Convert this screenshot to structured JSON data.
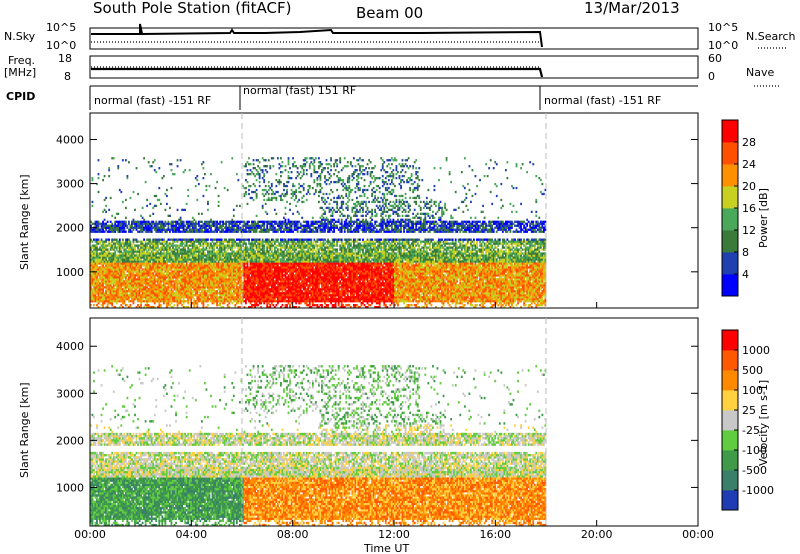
{
  "header": {
    "station": "South Pole Station (fitACF)",
    "beam": "Beam 00",
    "date": "13/Mar/2013"
  },
  "side_labels": {
    "nsky": "N.Sky",
    "freq_line1": "Freq.",
    "freq_line2": "[MHz]",
    "cpid": "CPID",
    "nsearch": "N.Search",
    "nave": "Nave"
  },
  "strip_ticks": {
    "nsky_top": "10^5",
    "nsky_bottom": "10^0",
    "freq_top": "18",
    "freq_bottom": "8",
    "nsearch_top": "10^5",
    "nsearch_bottom": "10^0",
    "nave_top": "60",
    "nave_bottom": "0"
  },
  "cpid_segments": [
    "normal (fast) -151 RF",
    "normal (fast) 151 RF",
    "normal (fast) -151 RF"
  ],
  "chart_data": [
    {
      "type": "heatmap",
      "quantity": "Power",
      "ylabel": "Slant Range [km]",
      "colorbar_label": "Power [dB]",
      "colorbar_ticks": [
        "4",
        "8",
        "12",
        "16",
        "20",
        "24",
        "28"
      ],
      "colorbar_colors": [
        "#0000ff",
        "#2040b0",
        "#3a7a3a",
        "#4aa85a",
        "#c8d020",
        "#ff9000",
        "#ff5000",
        "#ff0000"
      ],
      "y_ticks": [
        "1000",
        "2000",
        "3000",
        "4000"
      ],
      "ylim": [
        180,
        4600
      ],
      "xlim": [
        0,
        24
      ],
      "data_extent_hours": [
        0,
        18
      ],
      "x_ticks": [
        "00:00",
        "04:00",
        "08:00",
        "12:00",
        "16:00",
        "20:00",
        "00:00"
      ]
    },
    {
      "type": "heatmap",
      "quantity": "Velocity",
      "ylabel": "Slant Range [km]",
      "colorbar_label": "Velocity [m s-1]",
      "colorbar_ticks": [
        "1000",
        "500",
        "100",
        "25",
        "-25",
        "-100",
        "-500",
        "-1000"
      ],
      "colorbar_colors": [
        "#1f3cb4",
        "#3a7f6a",
        "#3f9a4a",
        "#62cc40",
        "#c8c8c8",
        "#ffd040",
        "#ff8a00",
        "#ff5a00",
        "#ff0000"
      ],
      "y_ticks": [
        "1000",
        "2000",
        "3000",
        "4000"
      ],
      "ylim": [
        180,
        4600
      ],
      "xlim": [
        0,
        24
      ],
      "data_extent_hours": [
        0,
        18
      ],
      "x_ticks": [
        "00:00",
        "04:00",
        "08:00",
        "12:00",
        "16:00",
        "20:00",
        "00:00"
      ],
      "xlabel": "Time UT"
    }
  ]
}
